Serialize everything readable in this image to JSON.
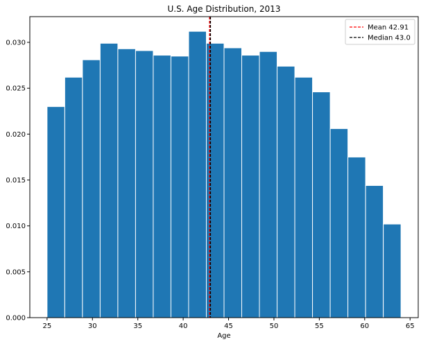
{
  "chart_data": {
    "type": "bar",
    "title": "U.S. Age Distribution, 2013",
    "xlabel": "Age",
    "ylabel": "",
    "bin_edges": [
      25,
      26.95,
      28.9,
      30.85,
      32.8,
      34.75,
      36.7,
      38.65,
      40.6,
      42.55,
      44.5,
      46.45,
      48.4,
      50.35,
      52.3,
      54.25,
      56.2,
      58.15,
      60.1,
      62.05,
      64
    ],
    "values": [
      0.023,
      0.0262,
      0.0281,
      0.0299,
      0.0293,
      0.0291,
      0.0286,
      0.0285,
      0.0312,
      0.0299,
      0.0294,
      0.0286,
      0.029,
      0.0274,
      0.0262,
      0.0246,
      0.0206,
      0.0175,
      0.0144,
      0.0102
    ],
    "xlim": [
      23.1,
      65.9
    ],
    "ylim": [
      0,
      0.0328
    ],
    "xticks": [
      25,
      30,
      35,
      40,
      45,
      50,
      55,
      60,
      65
    ],
    "yticks": [
      0.0,
      0.005,
      0.01,
      0.015,
      0.02,
      0.025,
      0.03
    ],
    "ytick_labels": [
      "0.000",
      "0.005",
      "0.010",
      "0.015",
      "0.020",
      "0.025",
      "0.030"
    ],
    "bar_color": "#1f77b4",
    "grid": false,
    "legend_position": "top-right",
    "vlines": [
      {
        "name": "Mean 42.91",
        "value": 42.91,
        "color": "#ff0000",
        "style": "dashed"
      },
      {
        "name": "Median 43.0",
        "value": 43.0,
        "color": "#000000",
        "style": "dashed"
      }
    ]
  }
}
